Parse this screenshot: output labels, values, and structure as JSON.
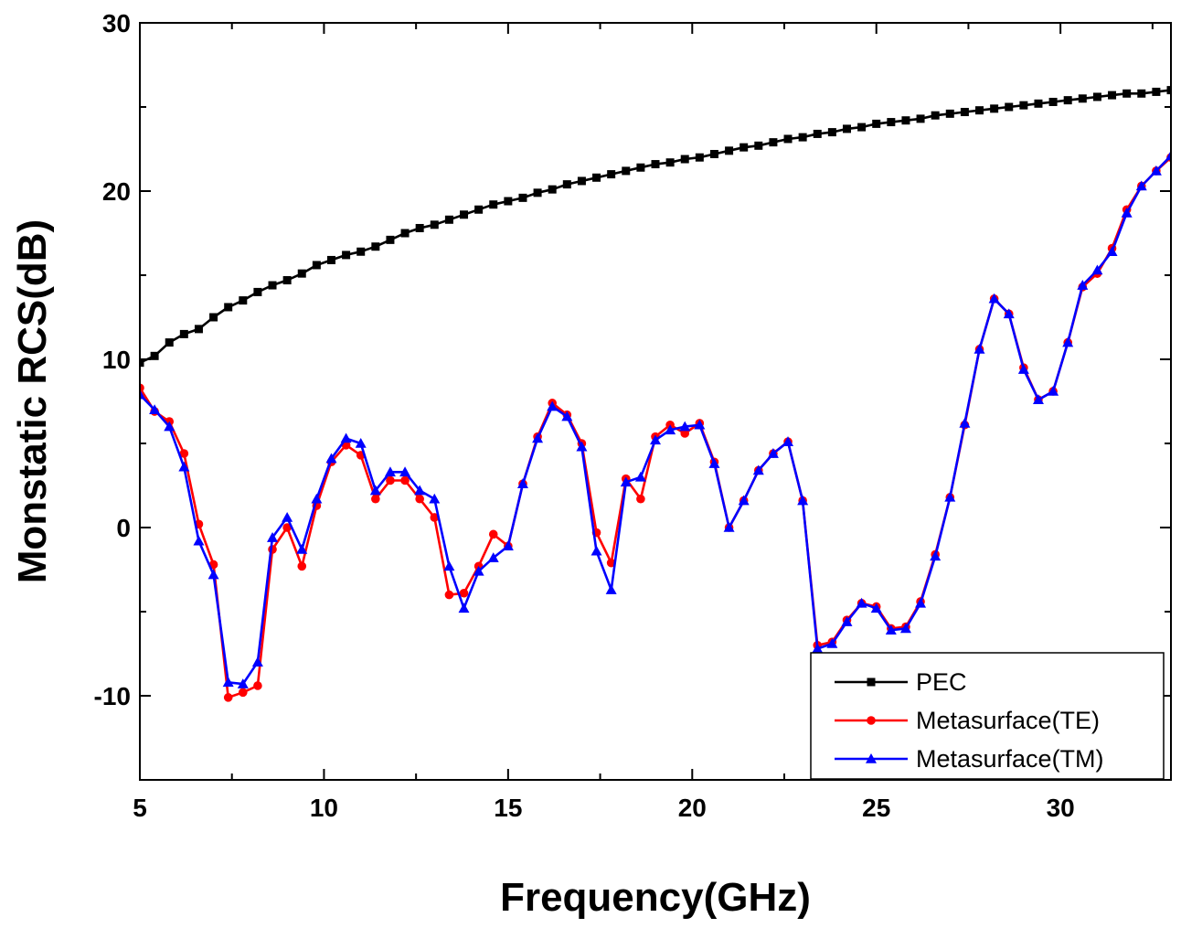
{
  "chart_data": {
    "type": "line",
    "title": "",
    "xlabel": "Frequency(GHz)",
    "ylabel": "Monstatic RCS(dB)",
    "xlim": [
      5,
      33
    ],
    "ylim": [
      -15,
      30
    ],
    "xticks": [
      5,
      10,
      15,
      20,
      25,
      30
    ],
    "yticks": [
      -10,
      0,
      10,
      20,
      30
    ],
    "grid": false,
    "legend_position": "bottom-right",
    "series": [
      {
        "name": "PEC",
        "color": "#000000",
        "marker": "square",
        "x": [
          5.0,
          5.4,
          5.8,
          6.2,
          6.6,
          7.0,
          7.4,
          7.8,
          8.2,
          8.6,
          9.0,
          9.4,
          9.8,
          10.2,
          10.6,
          11.0,
          11.4,
          11.8,
          12.2,
          12.6,
          13.0,
          13.4,
          13.8,
          14.2,
          14.6,
          15.0,
          15.4,
          15.8,
          16.2,
          16.6,
          17.0,
          17.4,
          17.8,
          18.2,
          18.6,
          19.0,
          19.4,
          19.8,
          20.2,
          20.6,
          21.0,
          21.4,
          21.8,
          22.2,
          22.6,
          23.0,
          23.4,
          23.8,
          24.2,
          24.6,
          25.0,
          25.4,
          25.8,
          26.2,
          26.6,
          27.0,
          27.4,
          27.8,
          28.2,
          28.6,
          29.0,
          29.4,
          29.8,
          30.2,
          30.6,
          31.0,
          31.4,
          31.8,
          32.2,
          32.6,
          33.0
        ],
        "y": [
          9.8,
          10.2,
          11.0,
          11.5,
          11.8,
          12.5,
          13.1,
          13.5,
          14.0,
          14.4,
          14.7,
          15.1,
          15.6,
          15.9,
          16.2,
          16.4,
          16.7,
          17.1,
          17.5,
          17.8,
          18.0,
          18.3,
          18.6,
          18.9,
          19.2,
          19.4,
          19.6,
          19.9,
          20.1,
          20.4,
          20.6,
          20.8,
          21.0,
          21.2,
          21.4,
          21.6,
          21.7,
          21.9,
          22.0,
          22.2,
          22.4,
          22.6,
          22.7,
          22.9,
          23.1,
          23.2,
          23.4,
          23.5,
          23.7,
          23.8,
          24.0,
          24.1,
          24.2,
          24.3,
          24.5,
          24.6,
          24.7,
          24.8,
          24.9,
          25.0,
          25.1,
          25.2,
          25.3,
          25.4,
          25.5,
          25.6,
          25.7,
          25.8,
          25.8,
          25.9,
          26.0
        ]
      },
      {
        "name": "Metasurface(TE)",
        "color": "#ff0000",
        "marker": "circle",
        "x": [
          5.0,
          5.4,
          5.8,
          6.2,
          6.6,
          7.0,
          7.4,
          7.8,
          8.2,
          8.6,
          9.0,
          9.4,
          9.8,
          10.2,
          10.6,
          11.0,
          11.4,
          11.8,
          12.2,
          12.6,
          13.0,
          13.4,
          13.8,
          14.2,
          14.6,
          15.0,
          15.4,
          15.8,
          16.2,
          16.6,
          17.0,
          17.4,
          17.8,
          18.2,
          18.6,
          19.0,
          19.4,
          19.8,
          20.2,
          20.6,
          21.0,
          21.4,
          21.8,
          22.2,
          22.6,
          23.0,
          23.4,
          23.8,
          24.2,
          24.6,
          25.0,
          25.4,
          25.8,
          26.2,
          26.6,
          27.0,
          27.4,
          27.8,
          28.2,
          28.6,
          29.0,
          29.4,
          29.8,
          30.2,
          30.6,
          31.0,
          31.4,
          31.8,
          32.2,
          32.6,
          33.0
        ],
        "y": [
          8.3,
          6.9,
          6.3,
          4.4,
          0.2,
          -2.2,
          -10.1,
          -9.8,
          -9.4,
          -1.3,
          0.0,
          -2.3,
          1.3,
          3.9,
          4.9,
          4.3,
          1.7,
          2.8,
          2.8,
          1.7,
          0.6,
          -4.0,
          -3.9,
          -2.3,
          -0.4,
          -1.1,
          2.6,
          5.4,
          7.4,
          6.7,
          5.0,
          -0.3,
          -2.1,
          2.9,
          1.7,
          5.4,
          6.1,
          5.6,
          6.2,
          3.9,
          0.0,
          1.6,
          3.4,
          4.4,
          5.1,
          1.6,
          -7.0,
          -6.8,
          -5.5,
          -4.5,
          -4.7,
          -6.0,
          -5.9,
          -4.4,
          -1.6,
          1.8,
          6.1,
          10.6,
          13.6,
          12.7,
          9.5,
          7.6,
          8.1,
          11.0,
          14.3,
          15.1,
          16.6,
          18.9,
          20.3,
          21.2,
          22.0
        ]
      },
      {
        "name": "Metasurface(TM)",
        "color": "#0000ff",
        "marker": "triangle",
        "x": [
          5.0,
          5.4,
          5.8,
          6.2,
          6.6,
          7.0,
          7.4,
          7.8,
          8.2,
          8.6,
          9.0,
          9.4,
          9.8,
          10.2,
          10.6,
          11.0,
          11.4,
          11.8,
          12.2,
          12.6,
          13.0,
          13.4,
          13.8,
          14.2,
          14.6,
          15.0,
          15.4,
          15.8,
          16.2,
          16.6,
          17.0,
          17.4,
          17.8,
          18.2,
          18.6,
          19.0,
          19.4,
          19.8,
          20.2,
          20.6,
          21.0,
          21.4,
          21.8,
          22.2,
          22.6,
          23.0,
          23.4,
          23.8,
          24.2,
          24.6,
          25.0,
          25.4,
          25.8,
          26.2,
          26.6,
          27.0,
          27.4,
          27.8,
          28.2,
          28.6,
          29.0,
          29.4,
          29.8,
          30.2,
          30.6,
          31.0,
          31.4,
          31.8,
          32.2,
          32.6,
          33.0
        ],
        "y": [
          7.9,
          7.0,
          6.0,
          3.6,
          -0.8,
          -2.8,
          -9.2,
          -9.3,
          -8.0,
          -0.6,
          0.6,
          -1.3,
          1.7,
          4.1,
          5.3,
          5.0,
          2.2,
          3.3,
          3.3,
          2.2,
          1.7,
          -2.3,
          -4.8,
          -2.6,
          -1.8,
          -1.1,
          2.6,
          5.3,
          7.2,
          6.6,
          4.8,
          -1.4,
          -3.7,
          2.7,
          3.0,
          5.2,
          5.8,
          6.0,
          6.1,
          3.8,
          0.0,
          1.6,
          3.4,
          4.4,
          5.1,
          1.6,
          -7.2,
          -6.9,
          -5.6,
          -4.5,
          -4.8,
          -6.1,
          -6.0,
          -4.5,
          -1.7,
          1.8,
          6.2,
          10.6,
          13.6,
          12.7,
          9.4,
          7.6,
          8.1,
          11.0,
          14.4,
          15.3,
          16.4,
          18.7,
          20.3,
          21.2,
          22.1
        ]
      }
    ]
  }
}
